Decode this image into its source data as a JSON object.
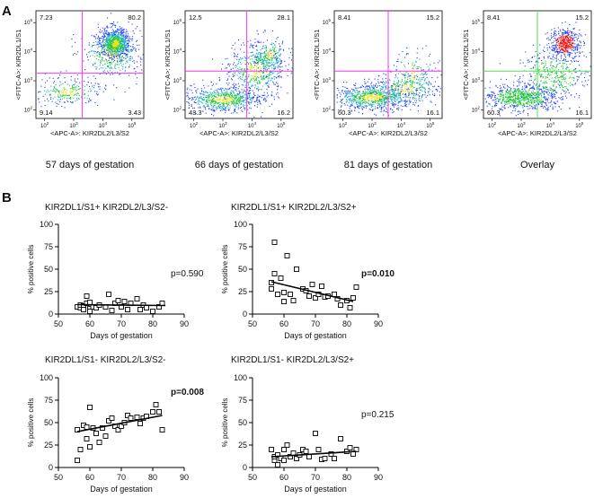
{
  "panel_labels": {
    "a": "A",
    "b": "B"
  },
  "flow": {
    "x_axis_label": "<APC-A>: KIR2DL2/L3/S2",
    "y_axis_label": "<FITC-A>: KIR2DL1/S1",
    "tick_labels": [
      "10^2",
      "10^3",
      "10^4",
      "10^5"
    ],
    "plots": [
      {
        "caption": "57 days of gestation",
        "q_ul": "7.23",
        "q_ur": "80.2",
        "q_ll": "9.14",
        "q_lr": "3.43"
      },
      {
        "caption": "66 days of gestation",
        "q_ul": "12.5",
        "q_ur": "28.1",
        "q_ll": "43.3",
        "q_lr": "16.2"
      },
      {
        "caption": "81 days of gestation",
        "q_ul": "8.41",
        "q_ur": "15.2",
        "q_ll": "60.3",
        "q_lr": "16.1"
      },
      {
        "caption": "Overlay",
        "q_ul": "8.41",
        "q_ur": "15.2",
        "q_ll": "60.3",
        "q_lr": "16.1"
      }
    ]
  },
  "colors": {
    "gate": "#ff33ff",
    "gate_overlay": "#55dd55",
    "blue": "#1a3cff",
    "green": "#22c93a",
    "red": "#ee1111",
    "yellow": "#e8e020"
  },
  "chart_data": [
    {
      "type": "scatter",
      "title": "KIR2DL1/S1+ KIR2DL2/L3/S2-",
      "xlabel": "Days of gestation",
      "ylabel": "% positive cells",
      "xlim": [
        50,
        90
      ],
      "ylim": [
        0,
        100
      ],
      "xticks": [
        50,
        60,
        70,
        80,
        90
      ],
      "yticks": [
        0,
        25,
        50,
        75,
        100
      ],
      "pvalue": "p=0.590",
      "pvalue_bold": false,
      "x": [
        56,
        57,
        57,
        58,
        58,
        59,
        59,
        60,
        60,
        60,
        61,
        62,
        63,
        65,
        66,
        67,
        68,
        69,
        70,
        71,
        72,
        73,
        75,
        76,
        77,
        78,
        80,
        82,
        83
      ],
      "y": [
        8,
        7,
        10,
        9,
        5,
        12,
        20,
        6,
        3,
        13,
        8,
        7,
        10,
        8,
        22,
        4,
        12,
        15,
        8,
        14,
        5,
        12,
        17,
        5,
        10,
        7,
        3,
        8,
        12
      ],
      "fit": {
        "x": [
          56,
          84
        ],
        "y": [
          10.5,
          9.5
        ]
      }
    },
    {
      "type": "scatter",
      "title": "KIR2DL1/S1+ KIR2DL2/L3/S2+",
      "xlabel": "Days of gestation",
      "ylabel": "% positive cells",
      "xlim": [
        50,
        90
      ],
      "ylim": [
        0,
        100
      ],
      "xticks": [
        50,
        60,
        70,
        80,
        90
      ],
      "yticks": [
        0,
        25,
        50,
        75,
        100
      ],
      "pvalue": "p=0.010",
      "pvalue_bold": true,
      "x": [
        56,
        56,
        57,
        57,
        58,
        59,
        60,
        60,
        61,
        62,
        63,
        64,
        66,
        67,
        68,
        69,
        70,
        71,
        72,
        73,
        74,
        76,
        77,
        78,
        80,
        81,
        82,
        83
      ],
      "y": [
        35,
        28,
        80,
        45,
        22,
        40,
        24,
        14,
        65,
        22,
        15,
        50,
        28,
        26,
        20,
        33,
        18,
        22,
        31,
        19,
        20,
        22,
        17,
        10,
        15,
        7,
        18,
        30
      ],
      "fit": {
        "x": [
          56,
          82
        ],
        "y": [
          36,
          14
        ]
      }
    },
    {
      "type": "scatter",
      "title": "KIR2DL1/S1- KIR2DL2/L3/S2-",
      "xlabel": "Days of gestation",
      "ylabel": "% positive cells",
      "xlim": [
        50,
        90
      ],
      "ylim": [
        0,
        100
      ],
      "xticks": [
        50,
        60,
        70,
        80,
        90
      ],
      "yticks": [
        0,
        25,
        50,
        75,
        100
      ],
      "pvalue": "p=0.008",
      "pvalue_bold": true,
      "x": [
        56,
        56,
        57,
        58,
        59,
        59,
        60,
        60,
        61,
        62,
        63,
        64,
        65,
        66,
        67,
        68,
        69,
        70,
        71,
        72,
        73,
        75,
        76,
        77,
        78,
        80,
        81,
        82,
        83
      ],
      "y": [
        42,
        8,
        20,
        47,
        45,
        32,
        67,
        23,
        44,
        38,
        28,
        44,
        35,
        52,
        55,
        46,
        42,
        46,
        50,
        58,
        55,
        56,
        49,
        55,
        57,
        62,
        70,
        62,
        42
      ],
      "fit": {
        "x": [
          56,
          83
        ],
        "y": [
          40,
          58
        ]
      }
    },
    {
      "type": "scatter",
      "title": "KIR2DL1/S1- KIR2DL2/L3/S2+",
      "xlabel": "Days of gestation",
      "ylabel": "% positive cells",
      "xlim": [
        50,
        90
      ],
      "ylim": [
        0,
        100
      ],
      "xticks": [
        50,
        60,
        70,
        80,
        90
      ],
      "yticks": [
        0,
        25,
        50,
        75,
        100
      ],
      "pvalue": "p=0.215",
      "pvalue_bold": false,
      "x": [
        56,
        57,
        57,
        58,
        58,
        59,
        60,
        60,
        61,
        62,
        63,
        64,
        65,
        66,
        67,
        68,
        70,
        71,
        72,
        73,
        75,
        76,
        78,
        80,
        81,
        82,
        83
      ],
      "y": [
        20,
        8,
        12,
        14,
        3,
        10,
        20,
        8,
        25,
        12,
        16,
        10,
        14,
        20,
        18,
        12,
        38,
        20,
        9,
        10,
        15,
        10,
        32,
        18,
        22,
        15,
        20
      ],
      "fit": {
        "x": [
          56,
          83
        ],
        "y": [
          12,
          18
        ]
      }
    }
  ]
}
